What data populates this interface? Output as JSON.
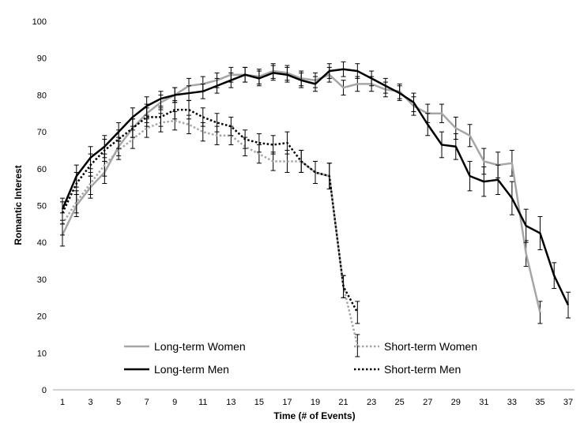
{
  "chart_data": {
    "type": "line",
    "title": "",
    "xlabel": "Time (# of Events)",
    "ylabel": "Romantic Interest",
    "xlim": [
      1,
      37
    ],
    "ylim": [
      0,
      100
    ],
    "x_ticks": [
      1,
      3,
      5,
      7,
      9,
      11,
      13,
      15,
      17,
      19,
      21,
      23,
      25,
      27,
      29,
      31,
      33,
      35,
      37
    ],
    "y_ticks": [
      0,
      10,
      20,
      30,
      40,
      50,
      60,
      70,
      80,
      90,
      100
    ],
    "grid": false,
    "legend_position": "bottom",
    "series": [
      {
        "name": "Long-term Women",
        "color": "#a6a6a6",
        "dash": "solid",
        "x": [
          1,
          2,
          3,
          4,
          5,
          6,
          7,
          8,
          9,
          10,
          11,
          12,
          13,
          14,
          15,
          16,
          17,
          18,
          19,
          20,
          21,
          22,
          23,
          24,
          25,
          26,
          27,
          28,
          29,
          30,
          31,
          32,
          33,
          34,
          35
        ],
        "values": [
          42,
          50,
          55,
          59,
          66,
          71,
          75,
          78,
          80,
          82.5,
          83,
          84,
          85.5,
          85.5,
          85,
          86.5,
          86,
          84.5,
          84,
          85.5,
          82,
          83,
          83,
          81.5,
          81,
          77,
          75,
          75,
          71,
          69,
          62,
          61,
          61.5,
          37,
          21
        ],
        "errors": [
          3,
          3,
          3,
          3,
          2.5,
          2.5,
          2.5,
          2,
          2,
          2,
          2,
          2,
          2,
          2,
          2,
          2,
          2,
          2,
          2,
          2,
          2,
          2,
          2,
          2,
          2,
          2.5,
          2.5,
          2.5,
          3,
          3,
          3.5,
          3.5,
          3.5,
          3.5,
          3
        ]
      },
      {
        "name": "Long-term Men",
        "color": "#000000",
        "dash": "solid",
        "x": [
          1,
          2,
          3,
          4,
          5,
          6,
          7,
          8,
          9,
          10,
          11,
          12,
          13,
          14,
          15,
          16,
          17,
          18,
          19,
          20,
          21,
          22,
          23,
          24,
          25,
          26,
          27,
          28,
          29,
          30,
          31,
          32,
          33,
          34,
          35,
          36,
          37
        ],
        "values": [
          49,
          58,
          63,
          66,
          70,
          74,
          77,
          79,
          80,
          80.5,
          81,
          82.5,
          84,
          85.5,
          84.5,
          86,
          85.5,
          84,
          83,
          86.5,
          87,
          86.5,
          84.5,
          82.5,
          80.5,
          78,
          72,
          66.5,
          66,
          58,
          56.5,
          57,
          52,
          44.5,
          42.5,
          31,
          23
        ],
        "errors": [
          3,
          3,
          3,
          3,
          2.5,
          2.5,
          2.5,
          2,
          2,
          2,
          2,
          2,
          2,
          2,
          2,
          2,
          2,
          2,
          2,
          2,
          2,
          2,
          2,
          2,
          2,
          2.5,
          3,
          3.5,
          3.5,
          4,
          4,
          4,
          4.5,
          4.5,
          4.5,
          3.5,
          3.5
        ]
      },
      {
        "name": "Short-term Women",
        "color": "#a6a6a6",
        "dash": "dotted",
        "x": [
          1,
          2,
          3,
          4,
          5,
          6,
          7,
          8,
          9,
          10,
          11,
          12,
          13,
          14,
          15,
          16,
          17,
          18,
          19,
          20,
          21,
          22
        ],
        "values": [
          45,
          51,
          56,
          61,
          65,
          68,
          71,
          72.5,
          73,
          72,
          70,
          69,
          69,
          66,
          64,
          62,
          62,
          62,
          59,
          58,
          28,
          12
        ],
        "errors": [
          3,
          3,
          3,
          3,
          2.5,
          2.5,
          2.5,
          2.5,
          2.5,
          2.5,
          2.5,
          2.5,
          2.5,
          2.5,
          2.5,
          2.5,
          3,
          3,
          3,
          3.5,
          3,
          3
        ]
      },
      {
        "name": "Short-term Men",
        "color": "#000000",
        "dash": "dotted",
        "x": [
          1,
          2,
          3,
          4,
          5,
          6,
          7,
          8,
          9,
          10,
          11,
          12,
          13,
          14,
          15,
          16,
          17,
          18,
          19,
          20,
          21,
          22
        ],
        "values": [
          48,
          56,
          61,
          65,
          68,
          71,
          74,
          74,
          76,
          76,
          74,
          72.5,
          71.5,
          68,
          67,
          66.5,
          67,
          62,
          59,
          58,
          28,
          21
        ],
        "errors": [
          3,
          3,
          3,
          3,
          2.5,
          2.5,
          2.5,
          2.5,
          2.5,
          2.5,
          2.5,
          2.5,
          2.5,
          2.5,
          2.5,
          2.5,
          3,
          3,
          3,
          3.5,
          3,
          3
        ]
      }
    ],
    "legend": [
      {
        "label": "Long-term Women",
        "series": 0
      },
      {
        "label": "Short-term Women",
        "series": 2
      },
      {
        "label": "Long-term Men",
        "series": 1
      },
      {
        "label": "Short-term Men",
        "series": 3
      }
    ]
  }
}
